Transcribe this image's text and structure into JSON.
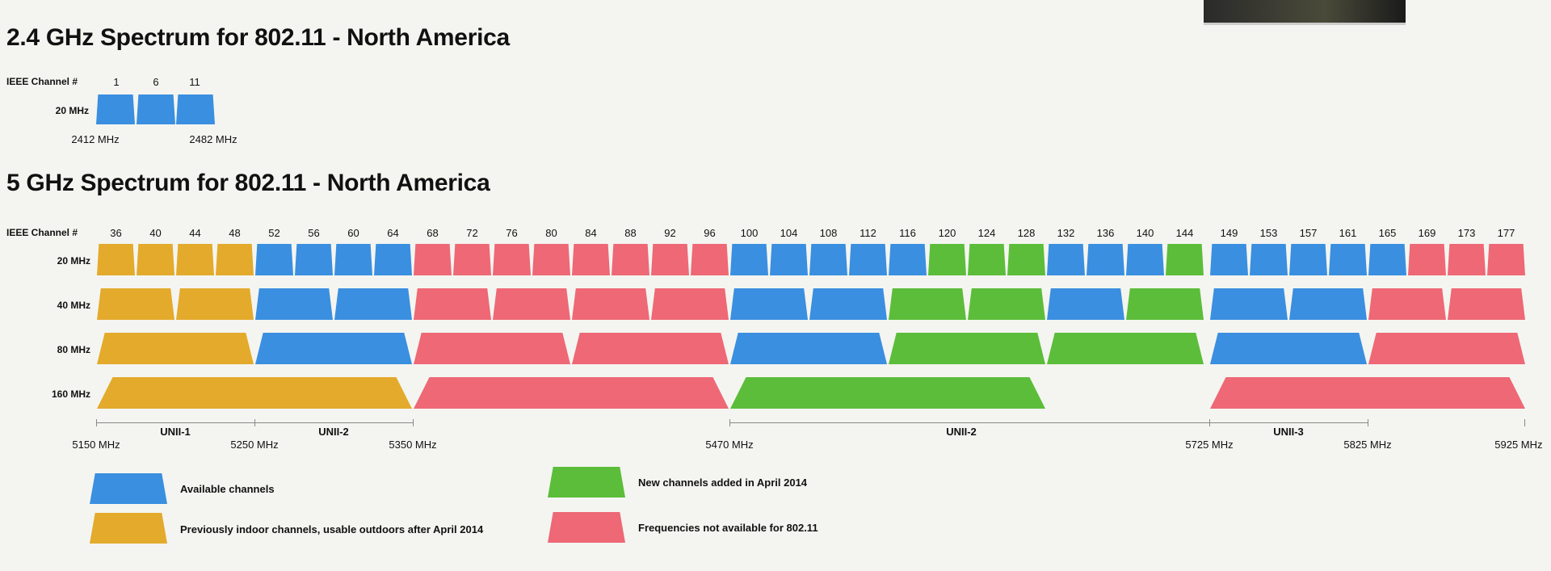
{
  "spectrum24": {
    "title": "2.4 GHz Spectrum for 802.11 - North America",
    "channel_label": "IEEE Channel #",
    "row_label": "20 MHz",
    "channels": [
      "1",
      "6",
      "11"
    ],
    "start_freq": "2412 MHz",
    "end_freq": "2482 MHz"
  },
  "spectrum5": {
    "title": "5 GHz Spectrum for 802.11 - North America",
    "channel_label": "IEEE Channel #",
    "rows": [
      "20 MHz",
      "40 MHz",
      "80 MHz",
      "160 MHz"
    ],
    "channels": [
      "36",
      "40",
      "44",
      "48",
      "52",
      "56",
      "60",
      "64",
      "68",
      "72",
      "76",
      "80",
      "84",
      "88",
      "92",
      "96",
      "100",
      "104",
      "108",
      "112",
      "116",
      "120",
      "124",
      "128",
      "132",
      "136",
      "140",
      "144",
      "149",
      "153",
      "157",
      "161",
      "165",
      "169",
      "173",
      "177"
    ],
    "freqs": [
      "5150 MHz",
      "5250 MHz",
      "5350 MHz",
      "5470 MHz",
      "5725 MHz",
      "5825 MHz",
      "5925 MHz"
    ],
    "bands": [
      "UNII-1",
      "UNII-2",
      "UNII-2",
      "UNII-3"
    ]
  },
  "legend": {
    "available": "Available channels",
    "indoor": "Previously indoor channels, usable outdoors after April 2014",
    "new": "New channels added in April 2014",
    "na": "Frequencies not available for 802.11"
  },
  "colors": {
    "available": "#3a8fe0",
    "indoor": "#e3aa2c",
    "new": "#5cbd3a",
    "na": "#ee6876"
  },
  "rows5": {
    "r20": [
      "indoor",
      "indoor",
      "indoor",
      "indoor",
      "avail",
      "avail",
      "avail",
      "avail",
      "na",
      "na",
      "na",
      "na",
      "na",
      "na",
      "na",
      "na",
      "avail",
      "avail",
      "avail",
      "avail",
      "avail",
      "new",
      "new",
      "new",
      "avail",
      "avail",
      "avail",
      "new",
      "avail",
      "avail",
      "avail",
      "avail",
      "avail",
      "na",
      "na",
      "na"
    ],
    "r40": [
      "indoor",
      "indoor",
      "avail",
      "avail",
      "na",
      "na",
      "na",
      "na",
      "avail",
      "avail",
      "new",
      "new",
      "avail",
      "new",
      "avail",
      "avail",
      "na",
      "na"
    ],
    "r80": [
      "indoor",
      "avail",
      "na",
      "na",
      "avail",
      "new",
      "new",
      "avail",
      "na"
    ],
    "r160": [
      "indoor",
      "na",
      "new",
      "na"
    ]
  }
}
